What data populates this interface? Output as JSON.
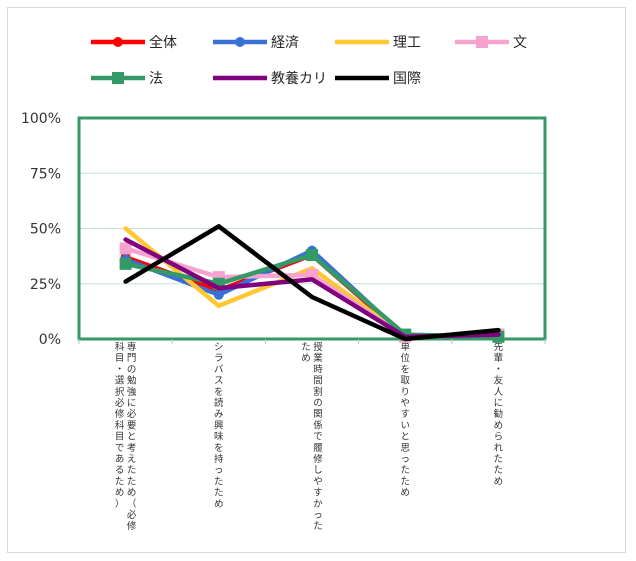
{
  "chart_data": {
    "type": "line",
    "categories": [
      [
        "専門の勉強に必要と考えたため（必修",
        "科目・選択必修科目であるため）"
      ],
      [
        "シラバスを読み興味を持ったため"
      ],
      [
        "授業時間割の関係で履修しやすかった",
        "ため"
      ],
      [
        "単位を取りやすいと思ったため"
      ],
      [
        "先輩・友人に勧められたため"
      ]
    ],
    "y_ticks": [
      "0%",
      "25%",
      "50%",
      "75%",
      "100%"
    ],
    "ylim": [
      0,
      1
    ],
    "grid": true,
    "legend_position": "top",
    "series": [
      {
        "name": "全体",
        "color": "#ff0000",
        "marker": "circle",
        "values": [
          0.37,
          0.22,
          0.38,
          0.01,
          0.02
        ]
      },
      {
        "name": "経済",
        "color": "#3b6fd8",
        "marker": "circle",
        "values": [
          0.36,
          0.2,
          0.4,
          0.01,
          0.02
        ]
      },
      {
        "name": "理工",
        "color": "#ffc832",
        "marker": "none",
        "values": [
          0.5,
          0.15,
          0.32,
          0.01,
          0.02
        ]
      },
      {
        "name": "文",
        "color": "#f6a3cf",
        "marker": "square",
        "values": [
          0.41,
          0.28,
          0.29,
          0.01,
          0.02
        ]
      },
      {
        "name": "法",
        "color": "#339966",
        "marker": "square",
        "values": [
          0.34,
          0.25,
          0.38,
          0.02,
          0.01
        ]
      },
      {
        "name": "教養カリ",
        "color": "#800080",
        "marker": "none",
        "values": [
          0.45,
          0.23,
          0.27,
          0.01,
          0.02
        ]
      },
      {
        "name": "国際",
        "color": "#000000",
        "marker": "none",
        "values": [
          0.26,
          0.51,
          0.19,
          0.0,
          0.04
        ]
      }
    ]
  }
}
